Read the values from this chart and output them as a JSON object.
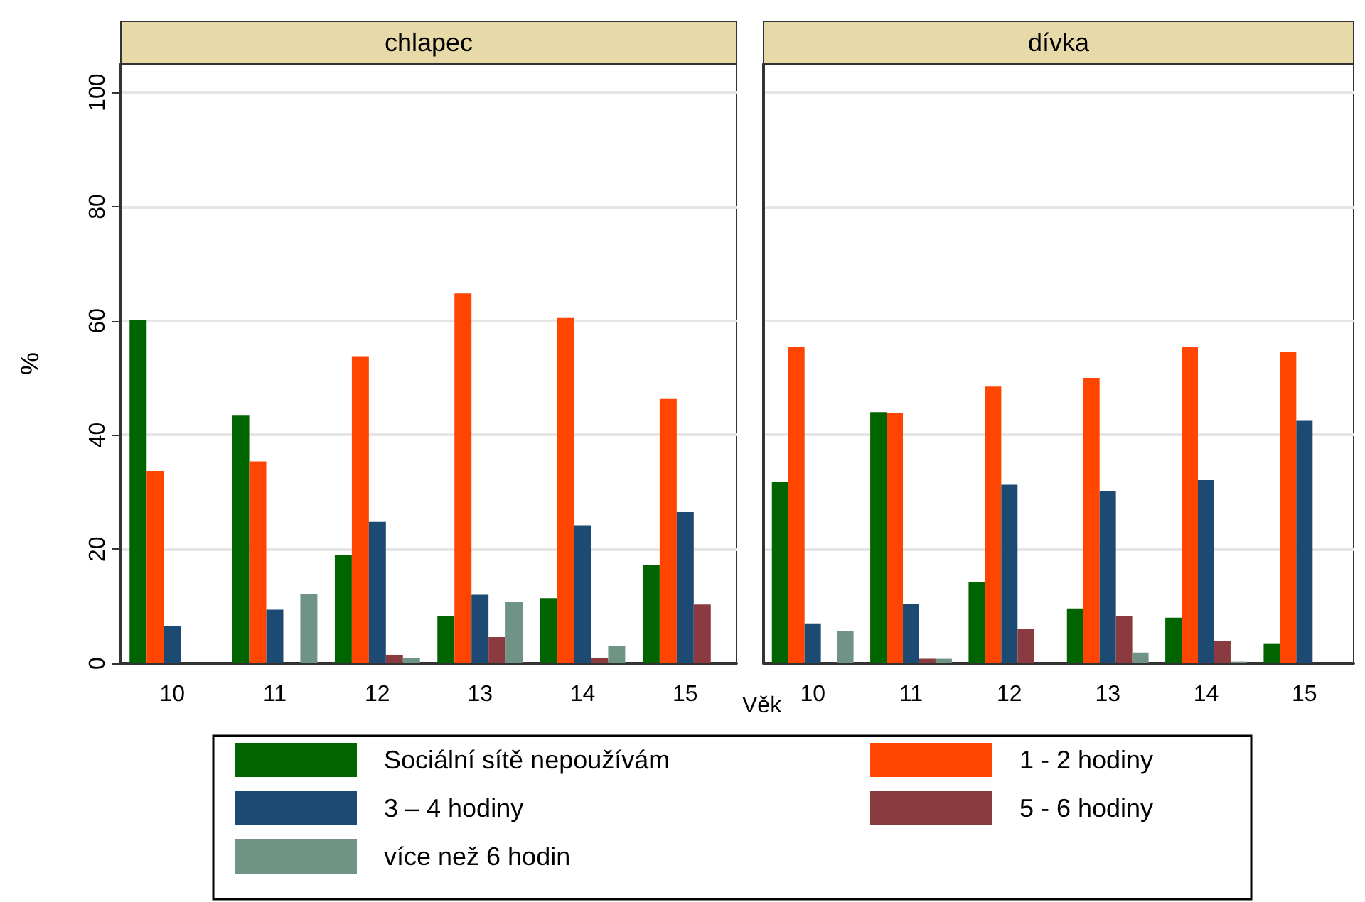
{
  "chart_data": [
    {
      "type": "bar",
      "title": "chlapec",
      "xlabel": "Věk",
      "ylabel": "%",
      "categories": [
        "10",
        "11",
        "12",
        "13",
        "14",
        "15"
      ],
      "series": [
        {
          "name": "Sociální sítě nepoužívám",
          "color": "#006400",
          "values": [
            60.2,
            43.4,
            18.9,
            8.2,
            11.4,
            17.3
          ]
        },
        {
          "name": "1 - 2 hodiny",
          "color": "#ff4500",
          "values": [
            33.7,
            35.4,
            53.8,
            64.8,
            60.5,
            46.3
          ]
        },
        {
          "name": "3 – 4 hodiny",
          "color": "#1c4a73",
          "values": [
            6.6,
            9.4,
            24.8,
            12.0,
            24.2,
            26.5
          ]
        },
        {
          "name": "5 - 6 hodiny",
          "color": "#8b3a3f",
          "values": [
            0,
            0,
            1.5,
            4.6,
            1.0,
            10.3
          ]
        },
        {
          "name": "více než 6 hodin",
          "color": "#6f9385",
          "values": [
            0,
            12.2,
            1.0,
            10.7,
            3.0,
            0
          ]
        }
      ],
      "ylim": [
        0,
        105
      ],
      "yticks": [
        0,
        20,
        40,
        60,
        80,
        100
      ],
      "grid": "y",
      "legend": "bottom"
    },
    {
      "type": "bar",
      "title": "dívka",
      "categories": [
        "10",
        "11",
        "12",
        "13",
        "14",
        "15"
      ],
      "series": [
        {
          "color": "#006400",
          "values": [
            31.8,
            44.0,
            14.2,
            9.6,
            8.0,
            3.4
          ]
        },
        {
          "color": "#ff4500",
          "values": [
            55.5,
            43.8,
            48.5,
            50.0,
            55.5,
            54.6
          ]
        },
        {
          "color": "#1c4a73",
          "values": [
            7.0,
            10.4,
            31.3,
            30.1,
            32.1,
            42.5
          ]
        },
        {
          "color": "#8b3a3f",
          "values": [
            0,
            0.8,
            6.0,
            8.3,
            3.9,
            0
          ]
        },
        {
          "color": "#6f9385",
          "values": [
            5.7,
            0.8,
            0,
            1.9,
            0.3,
            0
          ]
        }
      ],
      "ylim": [
        0,
        105
      ],
      "yticks": [
        0,
        20,
        40,
        60,
        80,
        100
      ],
      "grid": "y",
      "tick_labels": "x"
    }
  ]
}
